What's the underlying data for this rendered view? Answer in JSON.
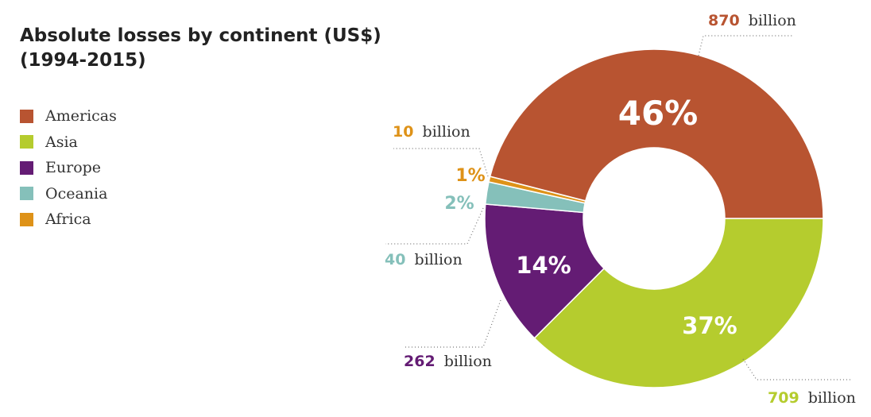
{
  "title": {
    "line1": "Absolute losses by continent (US$)",
    "line2": "(1994-2015)"
  },
  "chart_data": {
    "type": "pie",
    "title": "Absolute losses by continent (US$) (1994-2015)",
    "unit_suffix": "billion",
    "legend_position": "left",
    "slices": [
      {
        "label": "Americas",
        "value": 870,
        "value_text": "870",
        "percent_text": "46%",
        "color": "#b85431"
      },
      {
        "label": "Asia",
        "value": 709,
        "value_text": "709",
        "percent_text": "37%",
        "color": "#b5cc2e"
      },
      {
        "label": "Europe",
        "value": 262,
        "value_text": "262",
        "percent_text": "14%",
        "color": "#641c74"
      },
      {
        "label": "Oceania",
        "value": 40,
        "value_text": "40",
        "percent_text": "2%",
        "color": "#85c0ba"
      },
      {
        "label": "Africa",
        "value": 10,
        "value_text": "10",
        "percent_text": "1%",
        "color": "#de9218"
      }
    ]
  }
}
